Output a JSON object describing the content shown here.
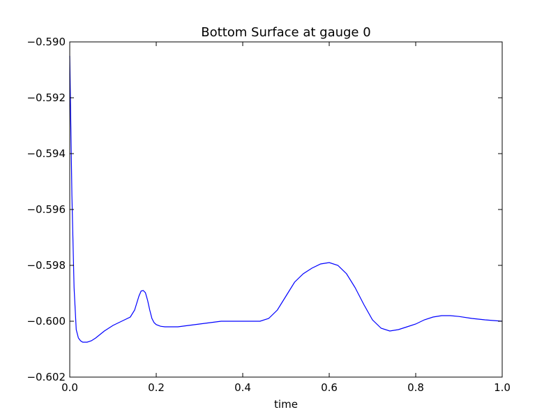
{
  "chart_data": {
    "type": "line",
    "title": "Bottom Surface at gauge 0",
    "xlabel": "time",
    "ylabel": "",
    "xlim": [
      0.0,
      1.0
    ],
    "ylim": [
      -0.602,
      -0.59
    ],
    "grid": false,
    "x_ticks": [
      {
        "value": 0.0,
        "label": "0.0"
      },
      {
        "value": 0.2,
        "label": "0.2"
      },
      {
        "value": 0.4,
        "label": "0.4"
      },
      {
        "value": 0.6,
        "label": "0.6"
      },
      {
        "value": 0.8,
        "label": "0.8"
      },
      {
        "value": 1.0,
        "label": "1.0"
      }
    ],
    "y_ticks": [
      {
        "value": -0.59,
        "label": "−0.590"
      },
      {
        "value": -0.592,
        "label": "−0.592"
      },
      {
        "value": -0.594,
        "label": "−0.594"
      },
      {
        "value": -0.596,
        "label": "−0.596"
      },
      {
        "value": -0.598,
        "label": "−0.598"
      },
      {
        "value": -0.6,
        "label": "−0.600"
      },
      {
        "value": -0.602,
        "label": "−0.602"
      }
    ],
    "series": [
      {
        "color": "#0000ff",
        "x": [
          0.0,
          0.005,
          0.01,
          0.015,
          0.02,
          0.025,
          0.03,
          0.04,
          0.05,
          0.06,
          0.08,
          0.1,
          0.12,
          0.14,
          0.15,
          0.16,
          0.165,
          0.17,
          0.175,
          0.18,
          0.185,
          0.19,
          0.195,
          0.2,
          0.21,
          0.22,
          0.25,
          0.3,
          0.35,
          0.4,
          0.44,
          0.46,
          0.48,
          0.5,
          0.52,
          0.54,
          0.56,
          0.58,
          0.6,
          0.62,
          0.64,
          0.66,
          0.68,
          0.7,
          0.72,
          0.74,
          0.76,
          0.78,
          0.8,
          0.82,
          0.84,
          0.86,
          0.88,
          0.9,
          0.93,
          0.96,
          1.0
        ],
        "y": [
          -0.5905,
          -0.5955,
          -0.5988,
          -0.6003,
          -0.6006,
          -0.6007,
          -0.60075,
          -0.60075,
          -0.6007,
          -0.6006,
          -0.60035,
          -0.60015,
          -0.6,
          -0.59985,
          -0.5996,
          -0.5991,
          -0.59892,
          -0.5989,
          -0.59898,
          -0.59925,
          -0.5996,
          -0.5999,
          -0.60005,
          -0.60012,
          -0.60018,
          -0.6002,
          -0.6002,
          -0.6001,
          -0.6,
          -0.6,
          -0.6,
          -0.5999,
          -0.5996,
          -0.5991,
          -0.5986,
          -0.5983,
          -0.5981,
          -0.59795,
          -0.5979,
          -0.598,
          -0.5983,
          -0.5988,
          -0.5994,
          -0.59995,
          -0.60025,
          -0.60035,
          -0.6003,
          -0.6002,
          -0.6001,
          -0.59995,
          -0.59985,
          -0.5998,
          -0.5998,
          -0.59983,
          -0.5999,
          -0.59995,
          -0.6
        ]
      }
    ]
  }
}
